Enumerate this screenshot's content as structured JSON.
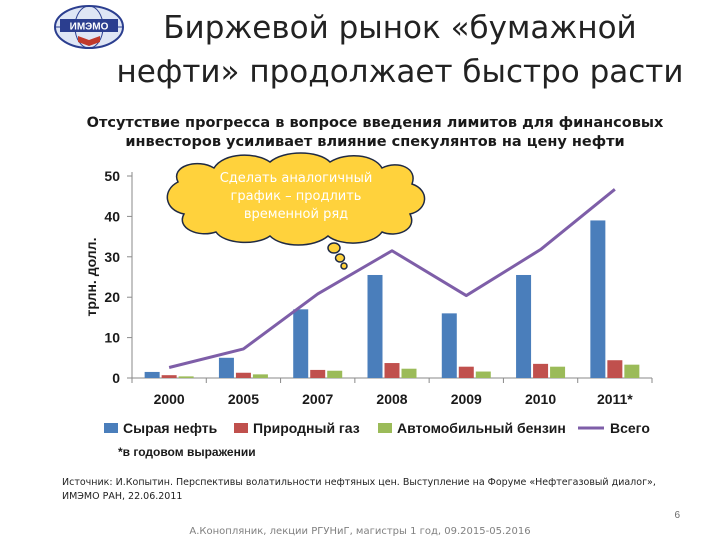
{
  "logo": {
    "text": "ИМЭМО",
    "colors": {
      "primary": "#2b3e8f",
      "accent": "#c0392b"
    }
  },
  "title": {
    "line1": "Биржевой рынок «бумажной",
    "line2": "нефти» продолжает быстро расти"
  },
  "chart_data": {
    "type": "bar",
    "title_line1": "Отсутствие прогресса в вопросе введения лимитов для финансовых",
    "title_line2": "инвесторов усиливает влияние спекулянтов на цену нефти",
    "ylabel": "трлн. долл.",
    "ylim": [
      0,
      50
    ],
    "yticks": [
      "0",
      "10",
      "20",
      "30",
      "40",
      "50"
    ],
    "categories": [
      "2000",
      "2005",
      "2007",
      "2008",
      "2009",
      "2010",
      "2011*"
    ],
    "series": [
      {
        "name": "Сырая нефть",
        "type": "bar",
        "color": "#4a7ebb",
        "values": [
          1.5,
          5,
          17,
          25.5,
          16,
          25.5,
          39
        ]
      },
      {
        "name": "Природный газ",
        "type": "bar",
        "color": "#c0504d",
        "values": [
          0.7,
          1.3,
          2,
          3.7,
          2.8,
          3.5,
          4.4
        ]
      },
      {
        "name": "Автомобильный бензин",
        "type": "bar",
        "color": "#9bbb59",
        "values": [
          0.4,
          0.9,
          1.8,
          2.3,
          1.6,
          2.8,
          3.3
        ]
      },
      {
        "name": "Всего",
        "type": "line",
        "color": "#7e5ea8",
        "values": [
          2.6,
          7.2,
          20.8,
          31.5,
          20.4,
          31.8,
          46.7
        ]
      }
    ],
    "note": "*в годовом выражении",
    "grid": false,
    "legend_position": "bottom"
  },
  "callout": {
    "text": "Сделать аналогичный график – продлить временной ряд",
    "fill": "#ffd23c"
  },
  "source": "Источник: И.Копытин. Перспективы волатильности нефтяных цен. Выступление на Форуме «Нефтегазовый диалог», ИМЭМО РАН, 22.06.2011",
  "page_number": "6",
  "footer": "А.Конопляник, лекции РГУНиГ, магистры 1 год, 09.2015-05.2016"
}
